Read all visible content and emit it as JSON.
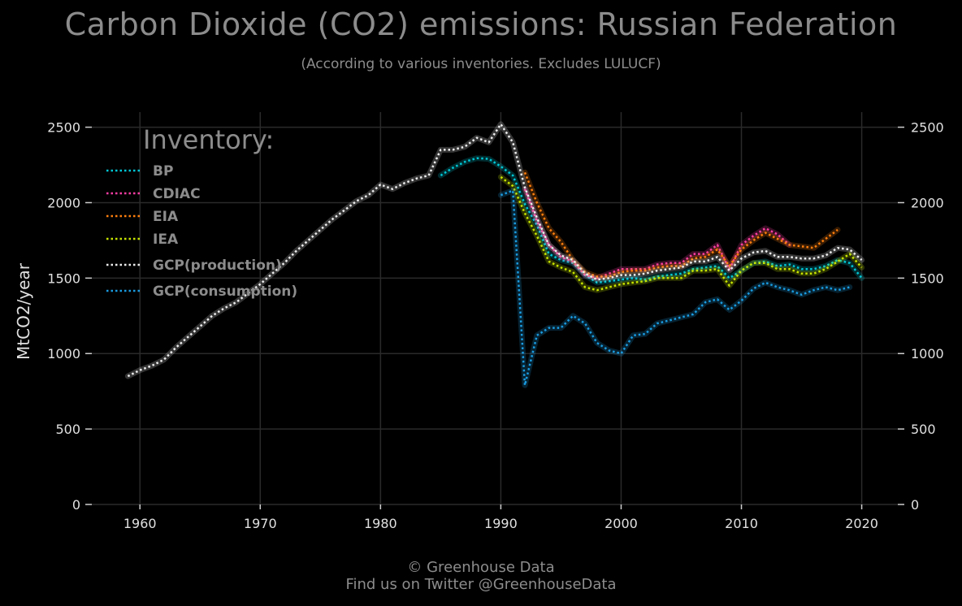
{
  "title": "Carbon Dioxide (CO2) emissions: Russian Federation",
  "subtitle": "(According to various inventories. Excludes LULUCF)",
  "footer": {
    "line1": "© Greenhouse Data",
    "line2": "Find us on Twitter @GreenhouseData"
  },
  "legend": {
    "title": "Inventory:",
    "placement": "top-left"
  },
  "chart_data": {
    "type": "line",
    "title": "Carbon Dioxide (CO2) emissions: Russian Federation",
    "subtitle": "(According to various inventories. Excludes LULUCF)",
    "ylabel": "MtCO2/year",
    "xlabel": "",
    "xlim": [
      1956,
      2023
    ],
    "ylim": [
      0,
      2600
    ],
    "xticks": [
      "1960",
      "1970",
      "1980",
      "1990",
      "2000",
      "2010",
      "2020"
    ],
    "yticks": [
      "0",
      "500",
      "1000",
      "1500",
      "2000",
      "2500"
    ],
    "grid": true,
    "line_style": "dotted",
    "background": "#000000",
    "series": [
      {
        "name": "BP",
        "color": "#00c8d7",
        "x": [
          1985,
          1986,
          1987,
          1988,
          1989,
          1990,
          1991,
          1992,
          1993,
          1994,
          1995,
          1996,
          1997,
          1998,
          1999,
          2000,
          2001,
          2002,
          2003,
          2004,
          2005,
          2006,
          2007,
          2008,
          2009,
          2010,
          2011,
          2012,
          2013,
          2014,
          2015,
          2016,
          2017,
          2018,
          2019,
          2020
        ],
        "y": [
          2180,
          2230,
          2270,
          2295,
          2290,
          2240,
          2180,
          1990,
          1850,
          1660,
          1620,
          1600,
          1520,
          1470,
          1480,
          1490,
          1500,
          1490,
          1510,
          1520,
          1530,
          1560,
          1570,
          1580,
          1500,
          1550,
          1600,
          1610,
          1580,
          1590,
          1560,
          1560,
          1580,
          1620,
          1600,
          1500
        ]
      },
      {
        "name": "CDIAC",
        "color": "#ff3ea5",
        "x": [
          1992,
          1993,
          1994,
          1995,
          1996,
          1997,
          1998,
          1999,
          2000,
          2001,
          2002,
          2003,
          2004,
          2005,
          2006,
          2007,
          2008,
          2009,
          2010,
          2011,
          2012,
          2013,
          2014
        ],
        "y": [
          2090,
          1880,
          1720,
          1640,
          1610,
          1520,
          1500,
          1530,
          1560,
          1560,
          1560,
          1590,
          1600,
          1600,
          1660,
          1660,
          1720,
          1560,
          1720,
          1780,
          1830,
          1790,
          1720
        ]
      },
      {
        "name": "EIA",
        "color": "#ff7f0e",
        "x": [
          1992,
          1993,
          1994,
          1995,
          1996,
          1997,
          1998,
          1999,
          2000,
          2001,
          2002,
          2003,
          2004,
          2005,
          2006,
          2007,
          2008,
          2009,
          2010,
          2011,
          2012,
          2013,
          2014,
          2015,
          2016,
          2017,
          2018
        ],
        "y": [
          2200,
          2000,
          1830,
          1740,
          1620,
          1540,
          1510,
          1510,
          1540,
          1550,
          1550,
          1570,
          1580,
          1580,
          1630,
          1640,
          1690,
          1580,
          1690,
          1750,
          1800,
          1760,
          1720,
          1710,
          1700,
          1760,
          1820
        ]
      },
      {
        "name": "IEA",
        "color": "#c8e600",
        "x": [
          1990,
          1991,
          1992,
          1993,
          1994,
          1995,
          1996,
          1997,
          1998,
          1999,
          2000,
          2001,
          2002,
          2003,
          2004,
          2005,
          2006,
          2007,
          2008,
          2009,
          2010,
          2011,
          2012,
          2013,
          2014,
          2015,
          2016,
          2017,
          2018,
          2019,
          2020
        ],
        "y": [
          2170,
          2110,
          1930,
          1780,
          1610,
          1570,
          1540,
          1440,
          1420,
          1440,
          1460,
          1470,
          1480,
          1500,
          1500,
          1500,
          1550,
          1550,
          1560,
          1450,
          1550,
          1600,
          1600,
          1560,
          1560,
          1530,
          1530,
          1560,
          1610,
          1660,
          1570
        ]
      },
      {
        "name": "GCP(production)",
        "color": "#eeeeee",
        "x": [
          1959,
          1960,
          1961,
          1962,
          1963,
          1964,
          1965,
          1966,
          1967,
          1968,
          1969,
          1970,
          1971,
          1972,
          1973,
          1974,
          1975,
          1976,
          1977,
          1978,
          1979,
          1980,
          1981,
          1982,
          1983,
          1984,
          1985,
          1986,
          1987,
          1988,
          1989,
          1990,
          1991,
          1992,
          1993,
          1994,
          1995,
          1996,
          1997,
          1998,
          1999,
          2000,
          2001,
          2002,
          2003,
          2004,
          2005,
          2006,
          2007,
          2008,
          2009,
          2010,
          2011,
          2012,
          2013,
          2014,
          2015,
          2016,
          2017,
          2018,
          2019,
          2020
        ],
        "y": [
          850,
          890,
          920,
          960,
          1040,
          1110,
          1180,
          1250,
          1300,
          1340,
          1400,
          1460,
          1530,
          1600,
          1680,
          1750,
          1820,
          1890,
          1950,
          2010,
          2050,
          2120,
          2090,
          2130,
          2160,
          2180,
          2350,
          2350,
          2370,
          2430,
          2400,
          2520,
          2400,
          2100,
          1900,
          1720,
          1650,
          1620,
          1530,
          1490,
          1500,
          1520,
          1520,
          1530,
          1550,
          1560,
          1570,
          1610,
          1610,
          1640,
          1550,
          1630,
          1670,
          1680,
          1640,
          1640,
          1630,
          1630,
          1650,
          1700,
          1690,
          1620
        ]
      },
      {
        "name": "GCP(consumption)",
        "color": "#1a9be0",
        "x": [
          1990,
          1991,
          1992,
          1993,
          1994,
          1995,
          1996,
          1997,
          1998,
          1999,
          2000,
          2001,
          2002,
          2003,
          2004,
          2005,
          2006,
          2007,
          2008,
          2009,
          2010,
          2011,
          2012,
          2013,
          2014,
          2015,
          2016,
          2017,
          2018,
          2019
        ],
        "y": [
          2050,
          2080,
          790,
          1120,
          1170,
          1170,
          1250,
          1200,
          1070,
          1020,
          1000,
          1120,
          1130,
          1200,
          1220,
          1240,
          1260,
          1340,
          1360,
          1290,
          1350,
          1430,
          1470,
          1440,
          1420,
          1390,
          1420,
          1440,
          1420,
          1440
        ]
      }
    ]
  }
}
